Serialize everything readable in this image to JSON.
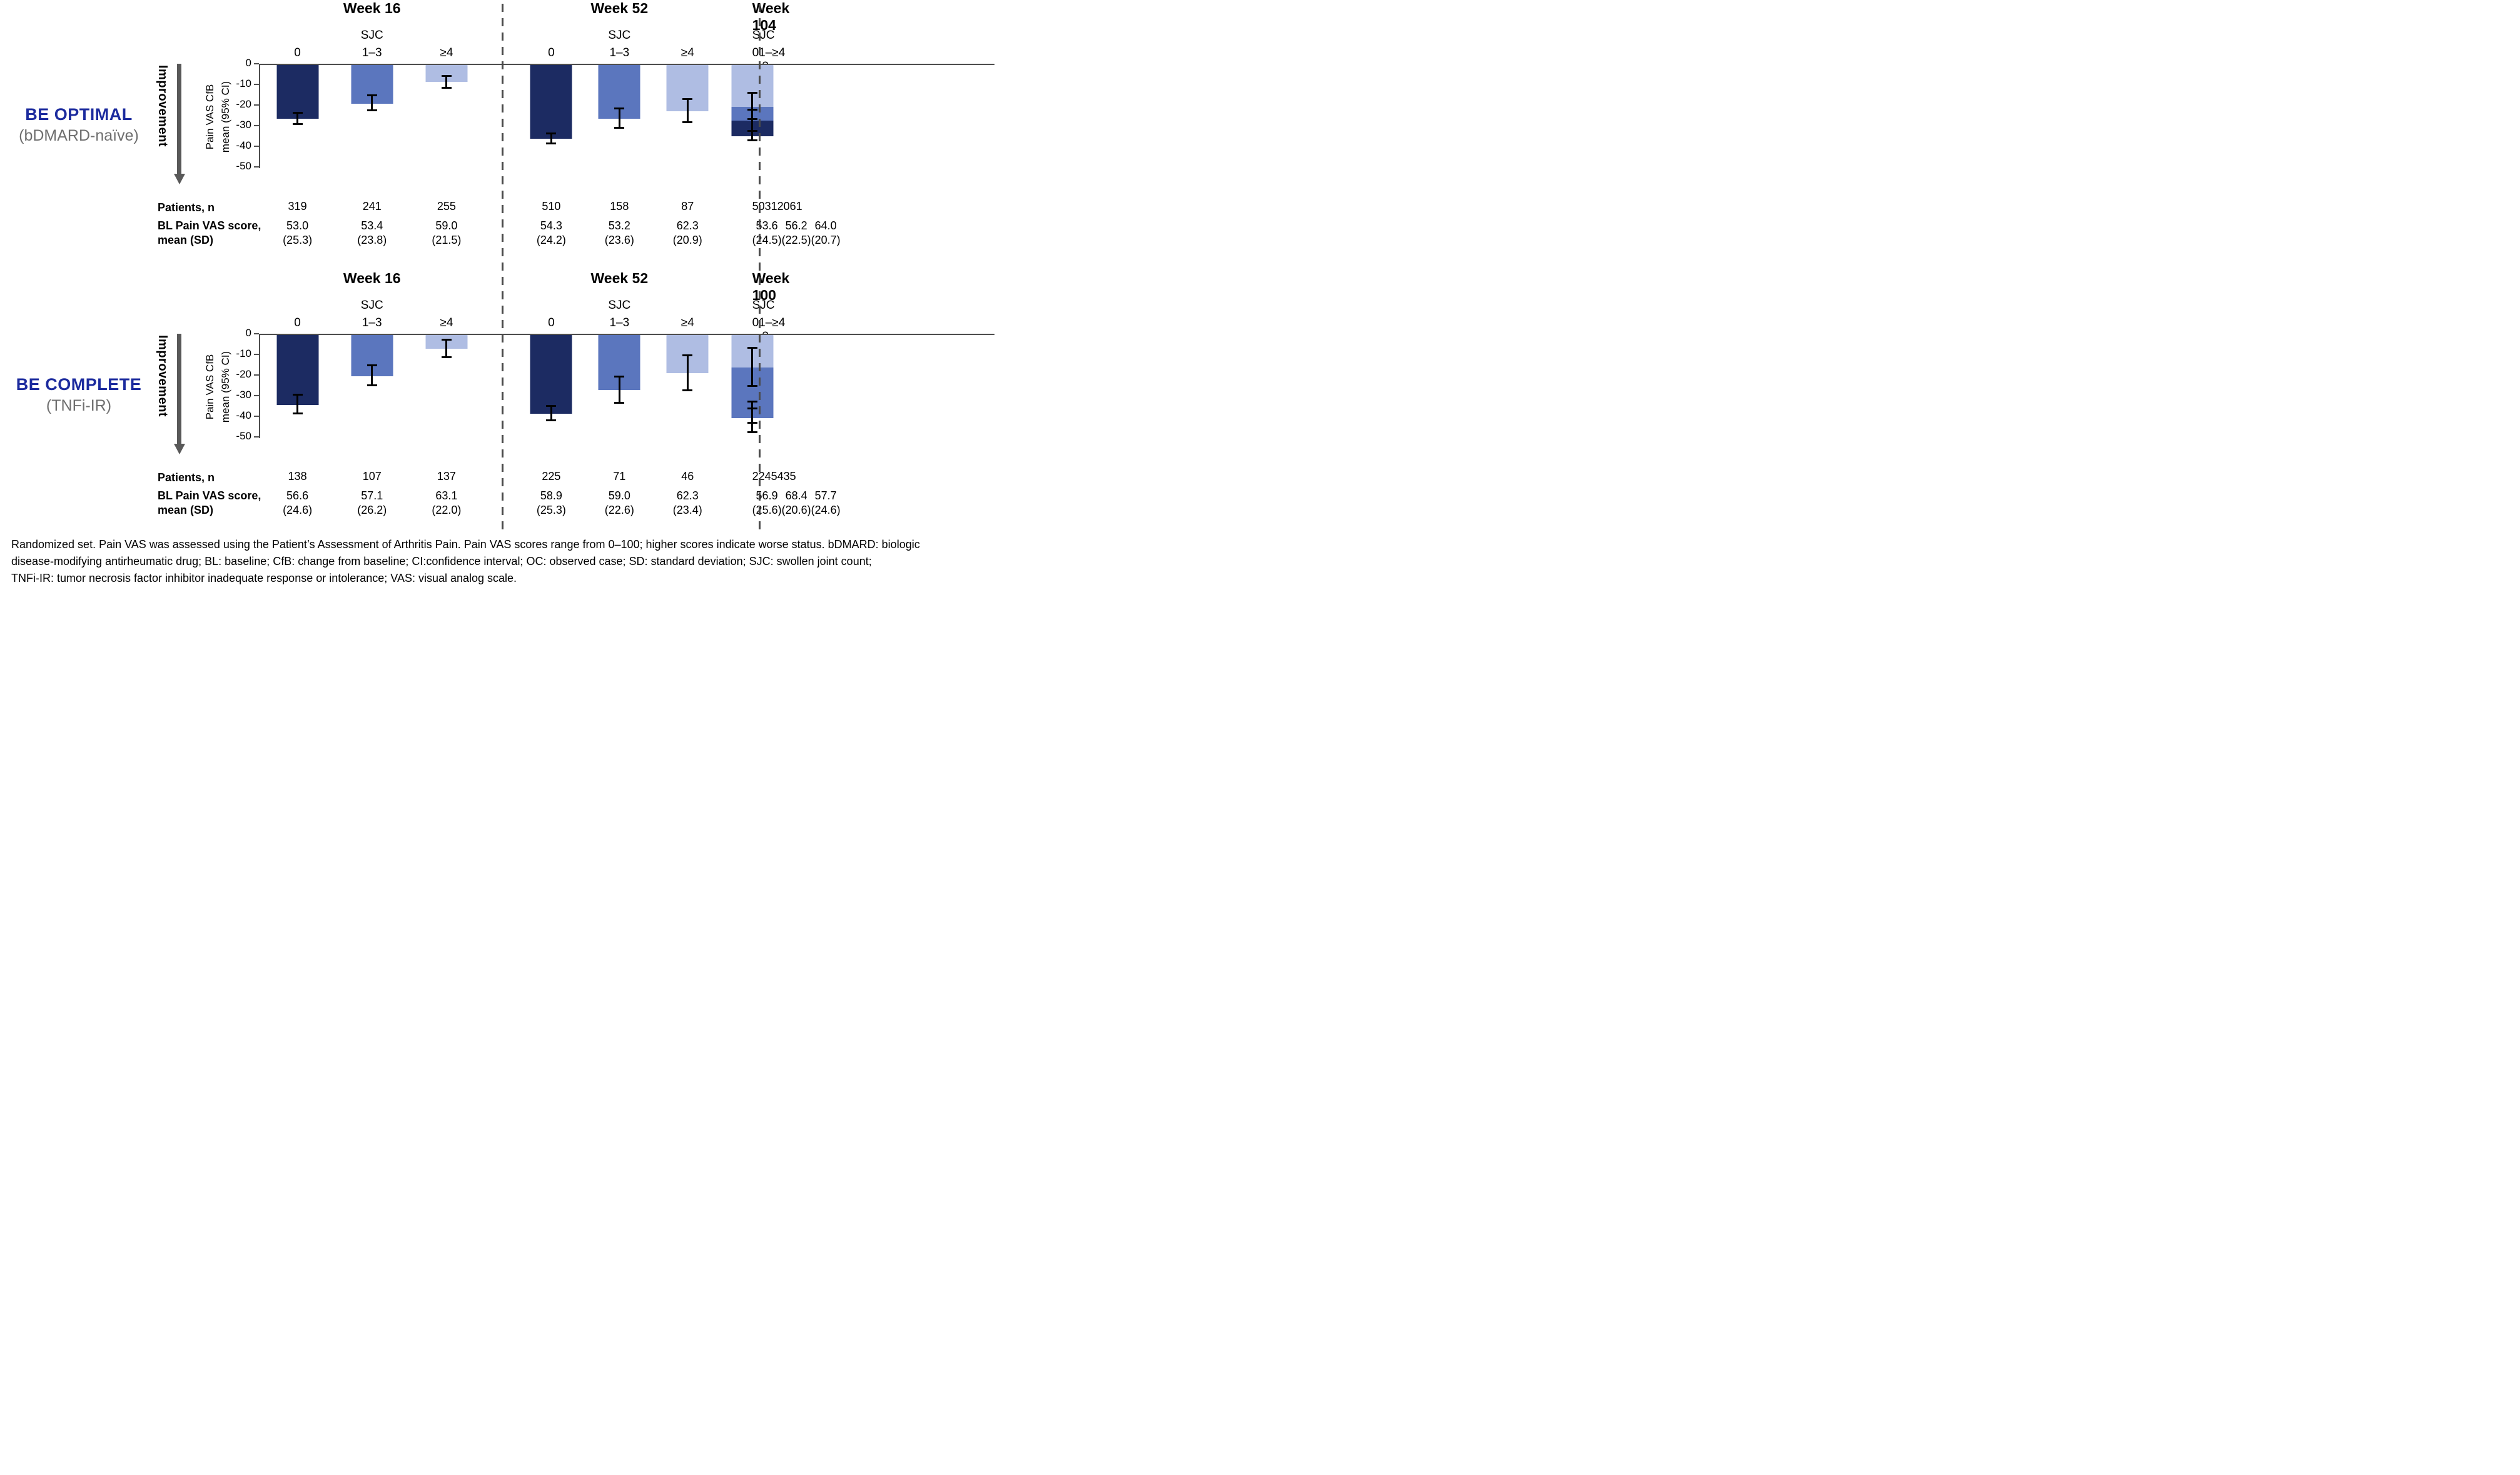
{
  "labels": {
    "improvement": "Improvement",
    "sjc": "SJC",
    "patients_label": "Patients, n",
    "bl_label_1": "BL Pain VAS score,",
    "bl_label_2": "mean (SD)",
    "y_axis_line_1": "Pain VAS CfB",
    "y_axis_line_2": "mean (95% CI)"
  },
  "y_ticks": [
    "0",
    "-10",
    "-20",
    "-30",
    "-40",
    "-50"
  ],
  "colors": {
    "sjc0": "#1c2b62",
    "sjc13": "#5b76be",
    "sjc4": "#afbde3",
    "study_name": "#1c2b9e",
    "study_subtitle": "#6f6f6f",
    "axis": "#4d4d4d",
    "arrow": "#595959",
    "error_bar": "#000000"
  },
  "chart_data": [
    {
      "type": "bar",
      "study": "BE OPTIMAL",
      "subtitle": "(bDMARD-naïve)",
      "ylabel": "Pain VAS CfB mean (95% CI)",
      "ylim": [
        -50,
        0
      ],
      "group_header": "SJC",
      "legend_position": "none",
      "grid": false,
      "panels": [
        {
          "week": "Week 16",
          "categories": [
            "0",
            "1–3",
            "≥4"
          ],
          "means": [
            -26.5,
            -19.0,
            -8.5
          ],
          "ci_upper": [
            -23.5,
            -15.2,
            -5.7
          ],
          "ci_lower": [
            -29.5,
            -22.7,
            -11.9
          ],
          "patients_n": [
            "319",
            "241",
            "255"
          ],
          "bl_mean": [
            "53.0",
            "53.4",
            "59.0"
          ],
          "bl_sd": [
            "(25.3)",
            "(23.8)",
            "(21.5)"
          ]
        },
        {
          "week": "Week 52",
          "categories": [
            "0",
            "1–3",
            "≥4"
          ],
          "means": [
            -36.2,
            -26.3,
            -22.7
          ],
          "ci_upper": [
            -33.7,
            -21.6,
            -17.0
          ],
          "ci_lower": [
            -38.9,
            -31.1,
            -28.4
          ],
          "patients_n": [
            "510",
            "158",
            "87"
          ],
          "bl_mean": [
            "54.3",
            "53.2",
            "62.3"
          ],
          "bl_sd": [
            "(24.2)",
            "(23.6)",
            "(20.9)"
          ]
        },
        {
          "week": "Week 104",
          "categories": [
            "0",
            "1–3",
            "≥4"
          ],
          "means": [
            -34.9,
            -27.4,
            -20.5
          ],
          "ci_upper": [
            -32.4,
            -22.1,
            -14.0
          ],
          "ci_lower": [
            -37.4,
            -32.7,
            -27.1
          ],
          "patients_n": [
            "503",
            "120",
            "61"
          ],
          "bl_mean": [
            "53.6",
            "56.2",
            "64.0"
          ],
          "bl_sd": [
            "(24.5)",
            "(22.5)",
            "(20.7)"
          ]
        }
      ]
    },
    {
      "type": "bar",
      "study": "BE COMPLETE",
      "subtitle": "(TNFi-IR)",
      "ylabel": "Pain VAS CfB mean (95% CI)",
      "ylim": [
        -50,
        0
      ],
      "group_header": "SJC",
      "legend_position": "none",
      "grid": false,
      "panels": [
        {
          "week": "Week 16",
          "categories": [
            "0",
            "1–3",
            "≥4"
          ],
          "means": [
            -34.1,
            -20.2,
            -7.0
          ],
          "ci_upper": [
            -29.4,
            -15.2,
            -2.6
          ],
          "ci_lower": [
            -38.8,
            -25.1,
            -11.4
          ],
          "patients_n": [
            "138",
            "107",
            "137"
          ],
          "bl_mean": [
            "56.6",
            "57.1",
            "63.1"
          ],
          "bl_sd": [
            "(24.6)",
            "(26.2)",
            "(22.0)"
          ]
        },
        {
          "week": "Week 52",
          "categories": [
            "0",
            "1–3",
            "≥4"
          ],
          "means": [
            -38.5,
            -27.0,
            -18.9
          ],
          "ci_upper": [
            -34.9,
            -20.5,
            -10.2
          ],
          "ci_lower": [
            -42.2,
            -33.5,
            -27.6
          ],
          "patients_n": [
            "225",
            "71",
            "46"
          ],
          "bl_mean": [
            "58.9",
            "59.0",
            "62.3"
          ],
          "bl_sd": [
            "(25.3)",
            "(22.6)",
            "(23.4)"
          ]
        },
        {
          "week": "Week 100",
          "categories": [
            "0",
            "1–3",
            "≥4"
          ],
          "means": [
            -39.7,
            -40.7,
            -16.2
          ],
          "ci_upper": [
            -36.2,
            -32.7,
            -6.8
          ],
          "ci_lower": [
            -43.3,
            -47.8,
            -25.5
          ],
          "patients_n": [
            "224",
            "54",
            "35"
          ],
          "bl_mean": [
            "56.9",
            "68.4",
            "57.7"
          ],
          "bl_sd": [
            "(25.6)",
            "(20.6)",
            "(24.6)"
          ]
        }
      ]
    }
  ],
  "footnote": [
    "Randomized set. Pain VAS was assessed using the Patient’s Assessment of Arthritis Pain. Pain VAS scores range from 0–100; higher scores indicate worse status. bDMARD: biologic",
    "disease-modifying antirheumatic drug; BL: baseline; CfB: change from baseline; CI:confidence interval; OC: observed case; SD: standard deviation; SJC: swollen joint count;",
    "TNFi-IR: tumor necrosis factor inhibitor inadequate response or intolerance; VAS: visual analog scale."
  ]
}
